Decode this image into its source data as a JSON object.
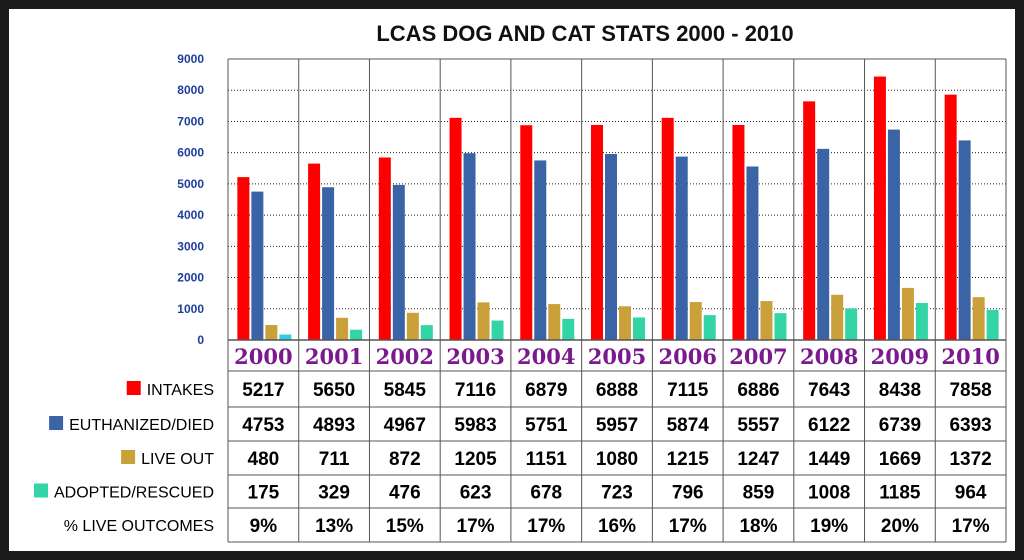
{
  "colors": {
    "intakes": "#ff0000",
    "euthanized": "#3a64a6",
    "live_out": "#caa03a",
    "adopted": "#33d4a6",
    "adopted_first": "#2ccfe3",
    "gridline": "#222222",
    "axis_tick": "#1d3f9a",
    "year": "#7a1a8e"
  },
  "chart_data": {
    "type": "bar",
    "title": "LCAS DOG AND CAT STATS 2000 - 2010",
    "xlabel": "",
    "ylabel": "",
    "ylim": [
      0,
      9000
    ],
    "yticks": [
      0,
      1000,
      2000,
      3000,
      4000,
      5000,
      6000,
      7000,
      8000,
      9000
    ],
    "grid": true,
    "legend": "table-left",
    "categories": [
      "2000",
      "2001",
      "2002",
      "2003",
      "2004",
      "2005",
      "2006",
      "2007",
      "2008",
      "2009",
      "2010"
    ],
    "series": [
      {
        "name": "INTAKES",
        "color_key": "intakes",
        "values": [
          5217,
          5650,
          5845,
          7116,
          6879,
          6888,
          7115,
          6886,
          7643,
          8438,
          7858
        ]
      },
      {
        "name": "EUTHANIZED/DIED",
        "color_key": "euthanized",
        "values": [
          4753,
          4893,
          4967,
          5983,
          5751,
          5957,
          5874,
          5557,
          6122,
          6739,
          6393
        ]
      },
      {
        "name": "LIVE OUT",
        "color_key": "live_out",
        "values": [
          480,
          711,
          872,
          1205,
          1151,
          1080,
          1215,
          1247,
          1449,
          1669,
          1372
        ]
      },
      {
        "name": "ADOPTED/RESCUED",
        "color_key": "adopted",
        "values": [
          175,
          329,
          476,
          623,
          678,
          723,
          796,
          859,
          1008,
          1185,
          964
        ]
      }
    ],
    "extra_rows": [
      {
        "name": "% LIVE OUTCOMES",
        "values": [
          "9%",
          "13%",
          "15%",
          "17%",
          "17%",
          "16%",
          "17%",
          "18%",
          "19%",
          "20%",
          "17%"
        ]
      }
    ]
  }
}
